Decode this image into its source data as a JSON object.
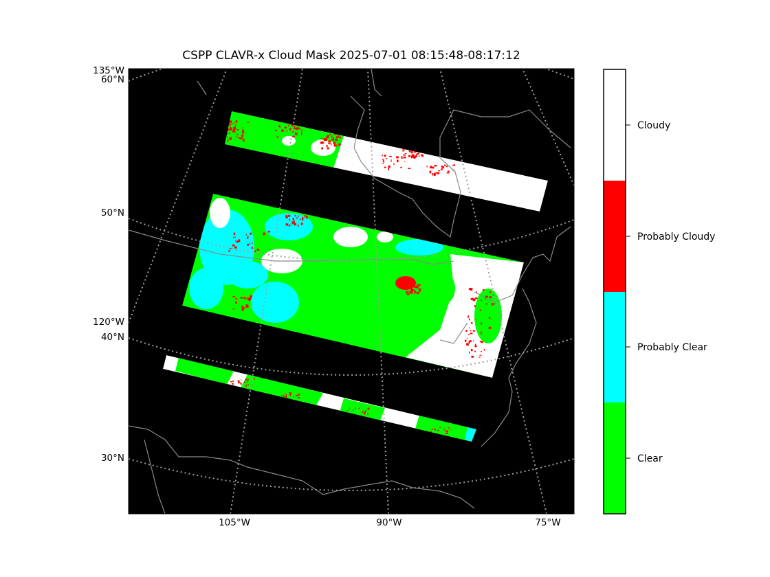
{
  "title": "CSPP CLAVR-x Cloud Mask 2025-07-01 08:15:48-08:17:12",
  "map": {
    "background": "#000000",
    "coastline_color": "#8a8a8a",
    "gridline_color": "#a0a0a0",
    "lat_labels": [
      "60°N",
      "50°N",
      "40°N",
      "30°N"
    ],
    "lon_labels_left": [
      "135°W",
      "120°W"
    ],
    "lon_labels_bottom": [
      "105°W",
      "90°W",
      "75°W"
    ]
  },
  "legend": {
    "categories": [
      {
        "label": "Cloudy",
        "color": "#ffffff"
      },
      {
        "label": "Probably Cloudy",
        "color": "#ff0000"
      },
      {
        "label": "Probably Clear",
        "color": "#00ffff"
      },
      {
        "label": "Clear",
        "color": "#00ff00"
      }
    ]
  },
  "swaths": [
    {
      "name": "north-granule",
      "dominant": [
        "Clear",
        "Probably Cloudy",
        "Cloudy"
      ]
    },
    {
      "name": "middle-granule",
      "dominant": [
        "Clear",
        "Probably Clear",
        "Probably Cloudy",
        "Cloudy"
      ]
    },
    {
      "name": "south-granule",
      "dominant": [
        "Cloudy",
        "Clear",
        "Probably Cloudy"
      ]
    }
  ]
}
